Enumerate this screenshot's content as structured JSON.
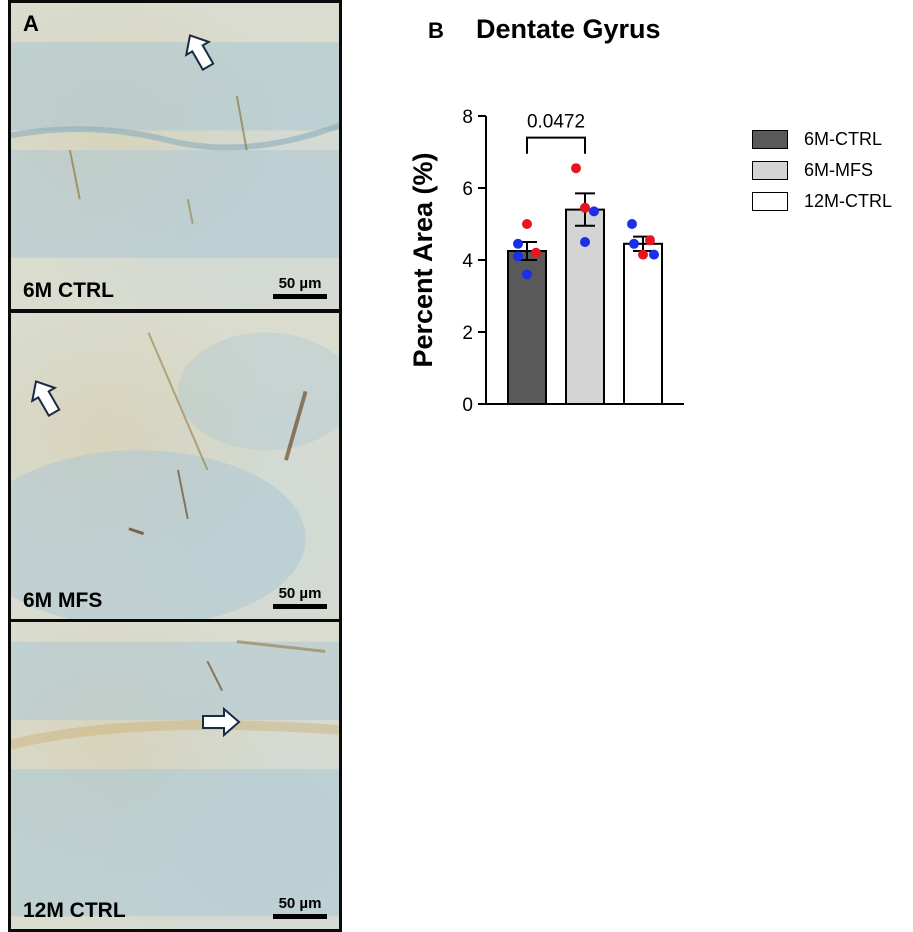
{
  "panel_a": {
    "letter": "A",
    "panels": [
      {
        "label": "6M CTRL",
        "scale": "50 µm"
      },
      {
        "label": "6M MFS",
        "scale": "50 µm"
      },
      {
        "label": "12M CTRL",
        "scale": "50 µm"
      }
    ]
  },
  "panel_b": {
    "letter": "B",
    "title": "Dentate Gyrus"
  },
  "colors": {
    "bar_6m_ctrl": "#595959",
    "bar_6m_mfs": "#d4d4d4",
    "bar_12m_ctrl": "#ffffff",
    "dot_red": "#e8141e",
    "dot_blue": "#1a2fe6"
  },
  "chart_data": {
    "type": "bar",
    "title": "Dentate Gyrus",
    "ylabel": "Percent Area (%)",
    "xlabel": "",
    "ylim": [
      0,
      8
    ],
    "yticks": [
      0,
      2,
      4,
      6,
      8
    ],
    "grid": false,
    "legend_position": "right",
    "categories": [
      "6M-CTRL",
      "6M-MFS",
      "12M-CTRL"
    ],
    "values": [
      4.25,
      5.4,
      4.45
    ],
    "sem": [
      0.25,
      0.45,
      0.2
    ],
    "points": [
      [
        {
          "y": 5.0,
          "color": "red"
        },
        {
          "y": 4.45,
          "color": "blue"
        },
        {
          "y": 4.2,
          "color": "red"
        },
        {
          "y": 4.1,
          "color": "blue"
        },
        {
          "y": 3.6,
          "color": "blue"
        }
      ],
      [
        {
          "y": 6.55,
          "color": "red"
        },
        {
          "y": 5.45,
          "color": "red"
        },
        {
          "y": 5.35,
          "color": "blue"
        },
        {
          "y": 4.5,
          "color": "blue"
        }
      ],
      [
        {
          "y": 5.0,
          "color": "blue"
        },
        {
          "y": 4.55,
          "color": "red"
        },
        {
          "y": 4.45,
          "color": "blue"
        },
        {
          "y": 4.15,
          "color": "blue"
        },
        {
          "y": 4.15,
          "color": "red"
        }
      ]
    ],
    "annotation": {
      "text": "0.0472",
      "from": 0,
      "to": 1
    }
  }
}
